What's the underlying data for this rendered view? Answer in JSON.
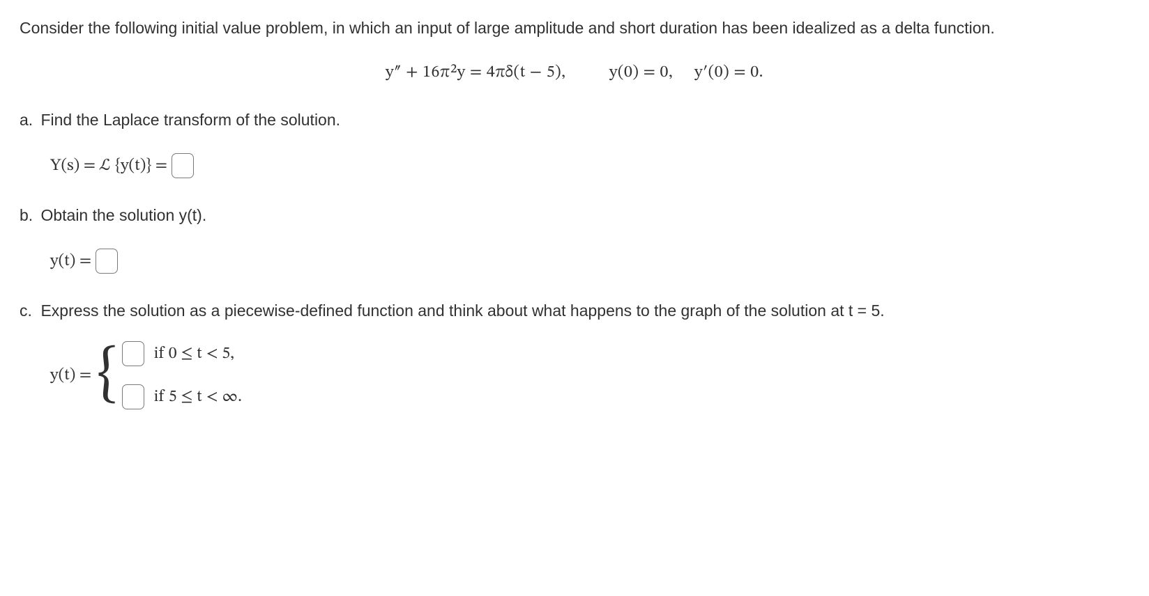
{
  "intro": "Consider the following initial value problem, in which an input of large amplitude and short duration has been idealized as a delta function.",
  "equation": {
    "ode": "y″ + 16π²y = 4πδ(t − 5),",
    "ic1": "y(0) = 0,",
    "ic2": "y′(0) = 0."
  },
  "parts": {
    "a": {
      "label": "a.",
      "text": "Find the Laplace transform of the solution.",
      "lhs": "Y(s) = ℒ {y(t)} ="
    },
    "b": {
      "label": "b.",
      "text": "Obtain the solution y(t).",
      "lhs": "y(t) ="
    },
    "c": {
      "label": "c.",
      "text": "Express the solution as a piecewise-defined function and think about what happens to the graph of the solution at t = 5.",
      "lhs": "y(t) =",
      "cond1": "if  0 ≤ t < 5,",
      "cond2": "if  5 ≤ t < ∞."
    }
  },
  "style": {
    "text_color": "#313131",
    "body_fontsize": 23,
    "math_fontsize": 24,
    "box_border_color": "#7a7a7a",
    "box_border_radius": 7,
    "background": "#ffffff"
  }
}
